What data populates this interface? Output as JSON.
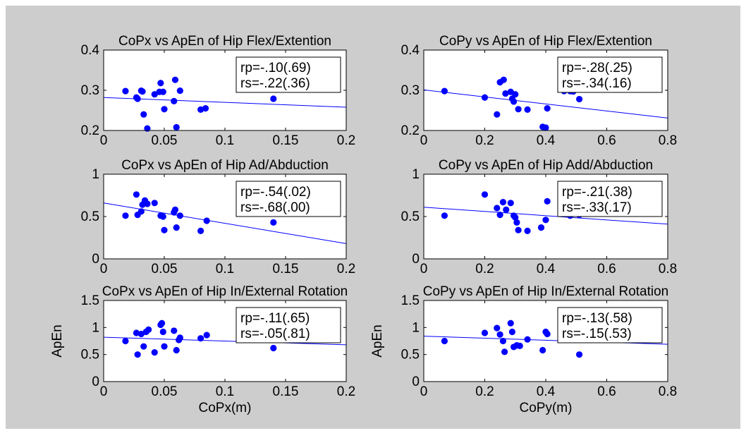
{
  "figure": {
    "background_color": "#cdcdcd",
    "axes_color": "#ffffff",
    "marker_color": "#0000ff",
    "line_color": "#0000ff"
  },
  "chart_data": [
    {
      "type": "scatter",
      "title": "CoPx vs ApEn of Hip Flex/Extention",
      "xlabel": "",
      "ylabel": "",
      "xlim": [
        0,
        0.2
      ],
      "ylim": [
        0.2,
        0.4
      ],
      "xticks": [
        "0",
        "0.05",
        "0.1",
        "0.15",
        "0.2"
      ],
      "yticks": [
        "0.2",
        "0.3",
        "0.4"
      ],
      "annotation": [
        "rp=-.10(.69)",
        "rs=-.22(.36)"
      ],
      "fit_line": [
        [
          0,
          0.282
        ],
        [
          0.2,
          0.258
        ]
      ],
      "points": [
        [
          0.018,
          0.298
        ],
        [
          0.027,
          0.282
        ],
        [
          0.028,
          0.279
        ],
        [
          0.031,
          0.299
        ],
        [
          0.032,
          0.297
        ],
        [
          0.033,
          0.24
        ],
        [
          0.036,
          0.205
        ],
        [
          0.042,
          0.29
        ],
        [
          0.046,
          0.296
        ],
        [
          0.047,
          0.318
        ],
        [
          0.049,
          0.296
        ],
        [
          0.05,
          0.253
        ],
        [
          0.058,
          0.273
        ],
        [
          0.059,
          0.326
        ],
        [
          0.06,
          0.208
        ],
        [
          0.063,
          0.299
        ],
        [
          0.08,
          0.252
        ],
        [
          0.084,
          0.255
        ],
        [
          0.14,
          0.279
        ]
      ]
    },
    {
      "type": "scatter",
      "title": "CoPy vs ApEn of Hip Flex/Extention",
      "xlabel": "",
      "ylabel": "",
      "xlim": [
        0,
        0.8
      ],
      "ylim": [
        0.2,
        0.4
      ],
      "xticks": [
        "0",
        "0.2",
        "0.4",
        "0.6",
        "0.8"
      ],
      "yticks": [
        "0.2",
        "0.3",
        "0.4"
      ],
      "annotation": [
        "rp=-.28(.25)",
        "rs=-.34(.16)"
      ],
      "fit_line": [
        [
          0,
          0.301
        ],
        [
          0.8,
          0.231
        ]
      ],
      "points": [
        [
          0.068,
          0.298
        ],
        [
          0.2,
          0.282
        ],
        [
          0.24,
          0.24
        ],
        [
          0.25,
          0.32
        ],
        [
          0.262,
          0.326
        ],
        [
          0.268,
          0.292
        ],
        [
          0.285,
          0.296
        ],
        [
          0.29,
          0.279
        ],
        [
          0.295,
          0.272
        ],
        [
          0.3,
          0.29
        ],
        [
          0.31,
          0.253
        ],
        [
          0.34,
          0.252
        ],
        [
          0.39,
          0.209
        ],
        [
          0.4,
          0.207
        ],
        [
          0.405,
          0.255
        ],
        [
          0.46,
          0.298
        ],
        [
          0.48,
          0.298
        ],
        [
          0.49,
          0.297
        ],
        [
          0.51,
          0.278
        ]
      ]
    },
    {
      "type": "scatter",
      "title": "CoPx vs ApEn of Hip Ad/Abduction",
      "xlabel": "",
      "ylabel": "",
      "xlim": [
        0,
        0.2
      ],
      "ylim": [
        0,
        1
      ],
      "xticks": [
        "0",
        "0.05",
        "0.1",
        "0.15",
        "0.2"
      ],
      "yticks": [
        "0",
        "0.5",
        "1"
      ],
      "annotation": [
        "rp=-.54(.02)",
        "rs=-.68(.00)"
      ],
      "fit_line": [
        [
          0,
          0.66
        ],
        [
          0.2,
          0.18
        ]
      ],
      "points": [
        [
          0.018,
          0.51
        ],
        [
          0.027,
          0.76
        ],
        [
          0.028,
          0.52
        ],
        [
          0.031,
          0.56
        ],
        [
          0.032,
          0.64
        ],
        [
          0.034,
          0.69
        ],
        [
          0.036,
          0.65
        ],
        [
          0.042,
          0.66
        ],
        [
          0.047,
          0.51
        ],
        [
          0.049,
          0.5
        ],
        [
          0.05,
          0.34
        ],
        [
          0.058,
          0.55
        ],
        [
          0.059,
          0.58
        ],
        [
          0.06,
          0.37
        ],
        [
          0.063,
          0.51
        ],
        [
          0.08,
          0.33
        ],
        [
          0.085,
          0.45
        ],
        [
          0.14,
          0.43
        ]
      ]
    },
    {
      "type": "scatter",
      "title": "CoPy vs ApEn of Hip Add/Abduction",
      "xlabel": "",
      "ylabel": "",
      "xlim": [
        0,
        0.8
      ],
      "ylim": [
        0,
        1
      ],
      "xticks": [
        "0",
        "0.2",
        "0.4",
        "0.6",
        "0.8"
      ],
      "yticks": [
        "0",
        "0.5",
        "1"
      ],
      "annotation": [
        "rp=-.21(.38)",
        "rs=-.33(.17)"
      ],
      "fit_line": [
        [
          0,
          0.61
        ],
        [
          0.8,
          0.41
        ]
      ],
      "points": [
        [
          0.068,
          0.51
        ],
        [
          0.2,
          0.76
        ],
        [
          0.24,
          0.6
        ],
        [
          0.25,
          0.52
        ],
        [
          0.26,
          0.67
        ],
        [
          0.27,
          0.58
        ],
        [
          0.285,
          0.66
        ],
        [
          0.295,
          0.51
        ],
        [
          0.3,
          0.49
        ],
        [
          0.305,
          0.43
        ],
        [
          0.31,
          0.34
        ],
        [
          0.34,
          0.33
        ],
        [
          0.385,
          0.37
        ],
        [
          0.4,
          0.46
        ],
        [
          0.405,
          0.68
        ],
        [
          0.46,
          0.58
        ],
        [
          0.48,
          0.51
        ],
        [
          0.51,
          0.52
        ]
      ]
    },
    {
      "type": "scatter",
      "title": "CoPx vs ApEn of Hip In/External Rotation",
      "xlabel": "CoPx(m)",
      "ylabel": "ApEn",
      "xlim": [
        0,
        0.2
      ],
      "ylim": [
        0,
        1.5
      ],
      "xticks": [
        "0",
        "0.05",
        "0.1",
        "0.15",
        "0.2"
      ],
      "yticks": [
        "0",
        "0.5",
        "1",
        "1.5"
      ],
      "annotation": [
        "rp=-.11(.65)",
        "rs=-.05(.81)"
      ],
      "fit_line": [
        [
          0,
          0.82
        ],
        [
          0.2,
          0.68
        ]
      ],
      "points": [
        [
          0.018,
          0.75
        ],
        [
          0.027,
          0.9
        ],
        [
          0.028,
          0.5
        ],
        [
          0.031,
          0.88
        ],
        [
          0.033,
          0.65
        ],
        [
          0.035,
          0.92
        ],
        [
          0.037,
          0.96
        ],
        [
          0.042,
          0.54
        ],
        [
          0.047,
          1.05
        ],
        [
          0.048,
          1.08
        ],
        [
          0.049,
          0.92
        ],
        [
          0.05,
          0.65
        ],
        [
          0.058,
          0.94
        ],
        [
          0.06,
          0.58
        ],
        [
          0.062,
          0.77
        ],
        [
          0.063,
          0.81
        ],
        [
          0.08,
          0.8
        ],
        [
          0.085,
          0.86
        ],
        [
          0.14,
          0.62
        ]
      ]
    },
    {
      "type": "scatter",
      "title": "CoPy vs ApEn of Hip In/External Rotation",
      "xlabel": "CoPy(m)",
      "ylabel": "ApEn",
      "xlim": [
        0,
        0.8
      ],
      "ylim": [
        0,
        1.5
      ],
      "xticks": [
        "0",
        "0.2",
        "0.4",
        "0.6",
        "0.8"
      ],
      "yticks": [
        "0",
        "0.5",
        "1",
        "1.5"
      ],
      "annotation": [
        "rp=-.13(.58)",
        "rs=-.15(.53)"
      ],
      "fit_line": [
        [
          0,
          0.84
        ],
        [
          0.8,
          0.69
        ]
      ],
      "points": [
        [
          0.068,
          0.75
        ],
        [
          0.2,
          0.9
        ],
        [
          0.24,
          0.99
        ],
        [
          0.25,
          0.87
        ],
        [
          0.26,
          0.75
        ],
        [
          0.265,
          0.55
        ],
        [
          0.285,
          1.08
        ],
        [
          0.29,
          0.92
        ],
        [
          0.295,
          0.64
        ],
        [
          0.305,
          0.67
        ],
        [
          0.315,
          0.66
        ],
        [
          0.34,
          0.78
        ],
        [
          0.39,
          0.58
        ],
        [
          0.4,
          0.92
        ],
        [
          0.405,
          0.88
        ],
        [
          0.46,
          0.86
        ],
        [
          0.48,
          0.81
        ],
        [
          0.51,
          0.5
        ]
      ]
    }
  ]
}
